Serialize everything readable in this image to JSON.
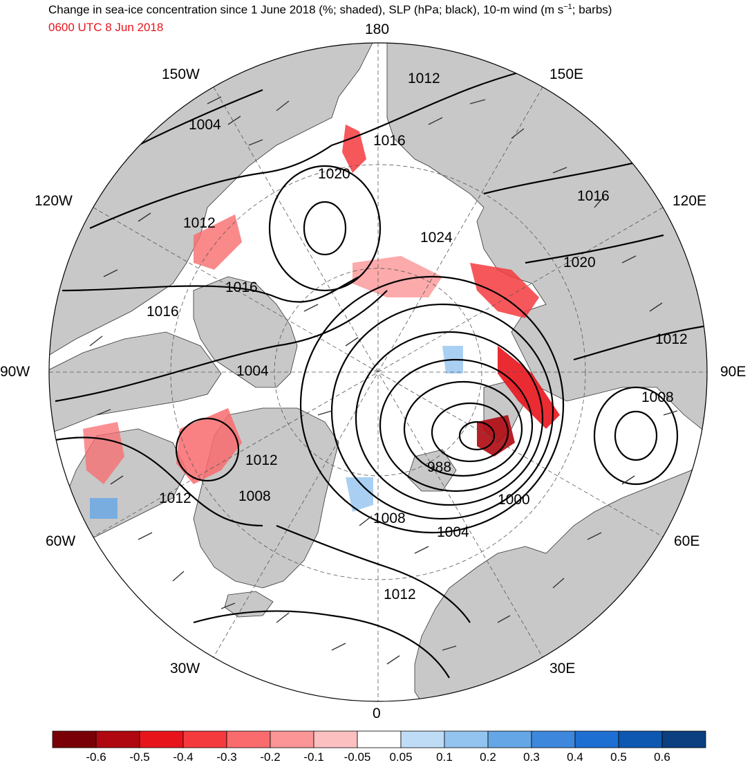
{
  "title": {
    "prefix": "Change in sea-ice concentration since 1 June 2018 (%; shaded), SLP (hPa; black), 10-m wind (m s",
    "sup": "−1",
    "suffix": "; barbs)"
  },
  "subtitle": "0600 UTC 8 Jun 2018",
  "colors": {
    "land": "#c8c8c8",
    "ocean": "#ffffff",
    "contour": "#000000",
    "subtitle": "#e8141c"
  },
  "longitude_labels": [
    "180",
    "150E",
    "120E",
    "90E",
    "60E",
    "30E",
    "0",
    "30W",
    "60W",
    "90W",
    "120W",
    "150W"
  ],
  "slp_contour_labels": [
    "1012",
    "1016",
    "1020",
    "1024",
    "1020",
    "1016",
    "1012",
    "1008",
    "1004",
    "1000",
    "988",
    "1004",
    "1008",
    "1012",
    "1012",
    "1008",
    "1012",
    "1016",
    "1016",
    "1012",
    "1004"
  ],
  "colorbar": {
    "ticks": [
      "-0.6",
      "-0.5",
      "-0.4",
      "-0.3",
      "-0.2",
      "-0.1",
      "-0.05",
      "0.05",
      "0.1",
      "0.2",
      "0.3",
      "0.4",
      "0.5",
      "0.6"
    ],
    "colors": [
      "#7a0008",
      "#b00810",
      "#e8141c",
      "#f53a3e",
      "#f96b6d",
      "#fb9596",
      "#fdc0c1",
      "#ffffff",
      "#bfdcf7",
      "#93c4ef",
      "#65a6e6",
      "#3d88dc",
      "#1e6fd2",
      "#0f58b2",
      "#0b3f7f"
    ]
  }
}
